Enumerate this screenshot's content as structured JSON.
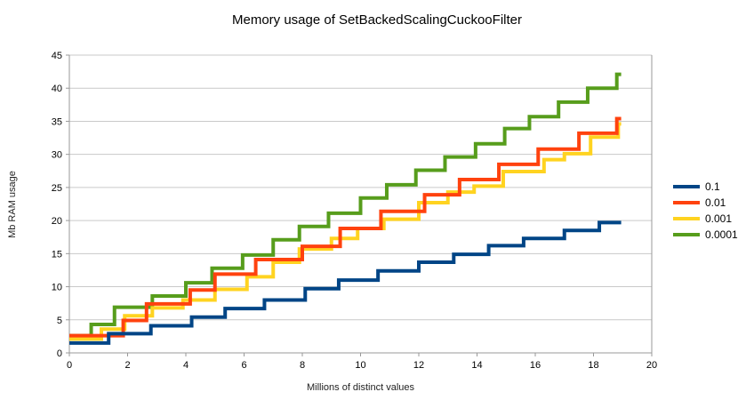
{
  "chart_data": {
    "type": "line",
    "variant": "step",
    "title": "Memory usage of SetBackedScalingCuckooFilter",
    "xlabel": "Millions of distinct values",
    "ylabel": "Mb RAM usage",
    "xlim": [
      0,
      20
    ],
    "ylim": [
      0,
      45
    ],
    "x_ticks": [
      0,
      2,
      4,
      6,
      8,
      10,
      12,
      14,
      16,
      18,
      20
    ],
    "y_ticks": [
      0,
      5,
      10,
      15,
      20,
      25,
      30,
      35,
      40,
      45
    ],
    "grid": "horizontal",
    "background": "#ffffff",
    "grid_color": "#c9c9c9",
    "axis_color": "#999999",
    "legend_position": "right",
    "series": [
      {
        "name": "0.1",
        "color": "#004586",
        "start_value": 1.5,
        "end_x": 18.95,
        "steps": [
          [
            1.35,
            2.9
          ],
          [
            2.8,
            4.1
          ],
          [
            4.2,
            5.4
          ],
          [
            5.35,
            6.7
          ],
          [
            6.7,
            8.0
          ],
          [
            8.1,
            9.7
          ],
          [
            9.25,
            11.0
          ],
          [
            10.6,
            12.4
          ],
          [
            12.0,
            13.7
          ],
          [
            13.2,
            14.9
          ],
          [
            14.4,
            16.2
          ],
          [
            15.6,
            17.3
          ],
          [
            17.0,
            18.5
          ],
          [
            18.2,
            19.7
          ]
        ]
      },
      {
        "name": "0.01",
        "color": "#ff420e",
        "start_value": 2.6,
        "end_x": 18.95,
        "steps": [
          [
            1.85,
            4.9
          ],
          [
            2.65,
            7.4
          ],
          [
            4.15,
            9.5
          ],
          [
            5.0,
            11.9
          ],
          [
            6.4,
            14.1
          ],
          [
            8.0,
            16.1
          ],
          [
            9.3,
            18.8
          ],
          [
            10.7,
            21.4
          ],
          [
            12.2,
            23.9
          ],
          [
            13.4,
            26.2
          ],
          [
            14.75,
            28.5
          ],
          [
            16.1,
            30.8
          ],
          [
            17.5,
            33.2
          ],
          [
            18.8,
            35.4
          ]
        ]
      },
      {
        "name": "0.001",
        "color": "#ffd320",
        "start_value": 2.1,
        "end_x": 18.95,
        "steps": [
          [
            1.1,
            3.6
          ],
          [
            1.9,
            5.6
          ],
          [
            2.85,
            6.8
          ],
          [
            3.9,
            8.0
          ],
          [
            5.0,
            9.6
          ],
          [
            6.1,
            11.5
          ],
          [
            7.0,
            13.7
          ],
          [
            7.9,
            15.7
          ],
          [
            9.0,
            17.3
          ],
          [
            9.9,
            18.8
          ],
          [
            10.8,
            20.2
          ],
          [
            12.0,
            22.7
          ],
          [
            13.0,
            24.3
          ],
          [
            13.9,
            25.2
          ],
          [
            14.9,
            27.4
          ],
          [
            16.3,
            29.2
          ],
          [
            17.0,
            30.1
          ],
          [
            17.9,
            32.6
          ],
          [
            18.85,
            34.6
          ]
        ]
      },
      {
        "name": "0.0001",
        "color": "#579d1c",
        "start_value": 2.6,
        "end_x": 18.95,
        "steps": [
          [
            0.75,
            4.3
          ],
          [
            1.55,
            6.9
          ],
          [
            2.85,
            8.6
          ],
          [
            4.0,
            10.6
          ],
          [
            4.9,
            12.8
          ],
          [
            5.95,
            14.8
          ],
          [
            7.0,
            17.1
          ],
          [
            7.9,
            19.1
          ],
          [
            8.9,
            21.1
          ],
          [
            10.0,
            23.4
          ],
          [
            10.9,
            25.4
          ],
          [
            11.9,
            27.6
          ],
          [
            12.9,
            29.6
          ],
          [
            13.95,
            31.6
          ],
          [
            14.95,
            33.9
          ],
          [
            15.8,
            35.7
          ],
          [
            16.8,
            37.9
          ],
          [
            17.8,
            40.0
          ],
          [
            18.8,
            42.1
          ]
        ]
      }
    ]
  }
}
